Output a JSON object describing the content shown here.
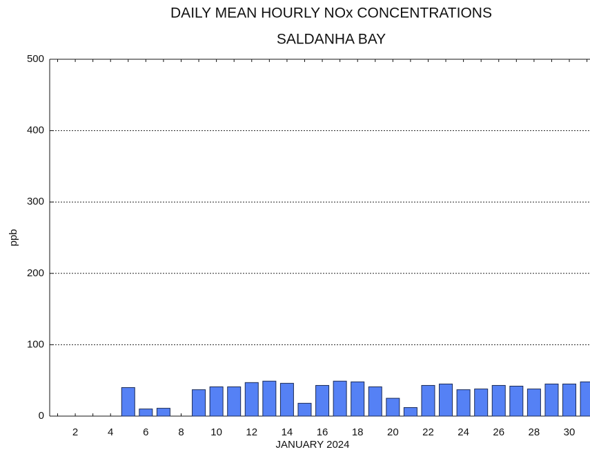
{
  "chart_data": {
    "type": "bar",
    "title": "DAILY MEAN HOURLY NOx CONCENTRATIONS",
    "subtitle": "SALDANHA BAY",
    "y_label": "ppb",
    "x_label": "JANUARY 2024",
    "categories": [
      null,
      "2",
      null,
      "4",
      null,
      "6",
      null,
      "8",
      null,
      "10",
      null,
      "12",
      null,
      "14",
      null,
      "16",
      null,
      "18",
      null,
      "20",
      null,
      "22",
      null,
      "24",
      null,
      "26",
      null,
      "28",
      null,
      "30",
      null
    ],
    "values": [
      null,
      null,
      null,
      null,
      40,
      10,
      11,
      null,
      37,
      41,
      41,
      47,
      49,
      46,
      18,
      43,
      49,
      48,
      41,
      25,
      12,
      43,
      45,
      37,
      38,
      43,
      42,
      38,
      45,
      45,
      48
    ],
    "color": "#5581f5",
    "ylim": [
      0,
      500
    ],
    "yticks": [
      0,
      100,
      200,
      300,
      400,
      500
    ],
    "grid": true
  }
}
